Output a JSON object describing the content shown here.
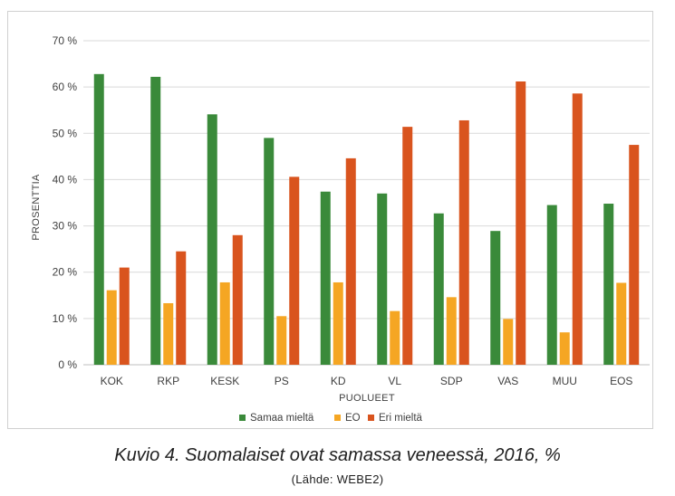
{
  "chart_data": {
    "type": "bar",
    "title": "",
    "xlabel": "PUOLUEET",
    "ylabel": "PROSENTTIA",
    "ylim": [
      0,
      70
    ],
    "ytick_values": [
      0,
      10,
      20,
      30,
      40,
      50,
      60,
      70
    ],
    "ytick_labels": [
      "0 %",
      "10 %",
      "20 %",
      "30 %",
      "40 %",
      "50 %",
      "60 %",
      "70 %"
    ],
    "categories": [
      "KOK",
      "RKP",
      "KESK",
      "PS",
      "KD",
      "VL",
      "SDP",
      "VAS",
      "MUU",
      "EOS"
    ],
    "series": [
      {
        "name": "Samaa mieltä",
        "color": "#3a8a3a",
        "values": [
          62.8,
          62.2,
          54.1,
          49.0,
          37.4,
          37.0,
          32.7,
          28.9,
          34.5,
          34.8
        ]
      },
      {
        "name": "EO",
        "color": "#f5a623",
        "values": [
          16.1,
          13.3,
          17.8,
          10.5,
          17.8,
          11.6,
          14.6,
          9.9,
          7.0,
          17.7
        ]
      },
      {
        "name": "Eri mieltä",
        "color": "#d9541e",
        "values": [
          21.0,
          24.5,
          28.0,
          40.6,
          44.6,
          51.4,
          52.8,
          61.2,
          58.6,
          47.5
        ]
      }
    ],
    "grid": true,
    "legend_position": "bottom"
  },
  "caption": "Kuvio 4. Suomalaiset ovat samassa veneessä, 2016, %",
  "source": "(Lähde: WEBE2)"
}
